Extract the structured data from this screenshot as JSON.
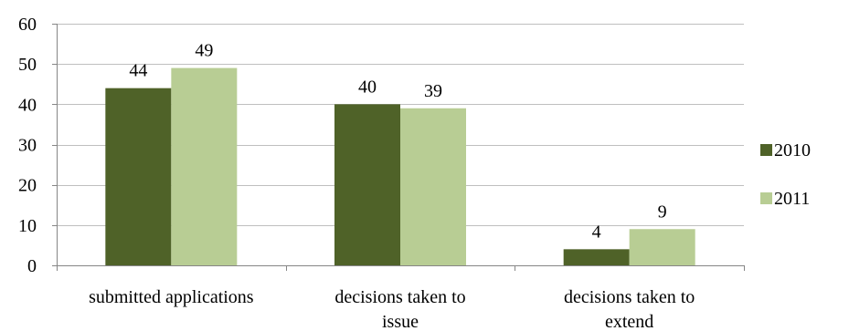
{
  "chart_data": {
    "type": "bar",
    "title": "",
    "xlabel": "",
    "ylabel": "",
    "categories": [
      [
        "submitted applications"
      ],
      [
        "decisions taken to",
        "issue"
      ],
      [
        "decisions taken to",
        "extend"
      ]
    ],
    "series": [
      {
        "name": "2010",
        "values": [
          44,
          40,
          4
        ],
        "color": "#4f6228"
      },
      {
        "name": "2011",
        "values": [
          49,
          39,
          9
        ],
        "color": "#b8cd94"
      }
    ],
    "ylim": [
      0,
      60
    ],
    "yticks": [
      0,
      10,
      20,
      30,
      40,
      50,
      60
    ],
    "grid": true,
    "legend_position": "right",
    "colors": {
      "grid": "#bfbfbf",
      "axis": "#868686"
    }
  }
}
